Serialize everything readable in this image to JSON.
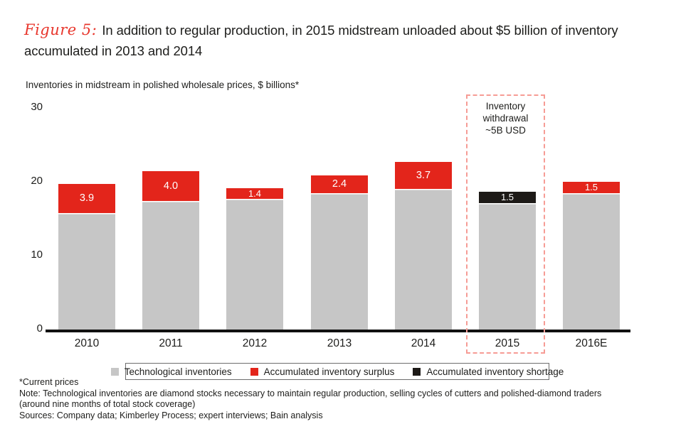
{
  "figure": {
    "label": "Figure 5:",
    "title": "In addition to regular production, in 2015 midstream unloaded about $5 billion of inventory accumulated in 2013 and 2014"
  },
  "axis_label": "Inventories in midstream in polished wholesale prices, $ billions*",
  "annotation": {
    "text": "Inventory\nwithdrawal\n~5B USD"
  },
  "legend": [
    {
      "name": "technological-inventories",
      "label": "Technological inventories",
      "color": "#c6c6c6"
    },
    {
      "name": "accumulated-inventory-surplus",
      "label": "Accumulated inventory surplus",
      "color": "#e3251b"
    },
    {
      "name": "accumulated-inventory-shortage",
      "label": "Accumulated inventory shortage",
      "color": "#1d1a17"
    }
  ],
  "footnotes": [
    "*Current prices",
    "Note: Technological inventories are diamond stocks necessary to maintain regular production, selling cycles of cutters and polished-diamond traders",
    "(around nine months of total stock coverage)",
    "Sources: Company data; Kimberley Process; expert interviews; Bain analysis"
  ],
  "chart_data": {
    "type": "bar",
    "stacked": true,
    "title": "Inventories in midstream in polished wholesale prices, $ billions",
    "categories": [
      "2010",
      "2011",
      "2012",
      "2013",
      "2014",
      "2015",
      "2016E"
    ],
    "series": [
      {
        "name": "Technological inventories",
        "color": "#c6c6c6",
        "values": [
          15.7,
          17.3,
          17.6,
          18.4,
          18.9,
          17.0,
          18.4
        ]
      },
      {
        "name": "Accumulated inventory surplus",
        "color": "#e3251b",
        "values": [
          3.9,
          4.0,
          1.4,
          2.4,
          3.7,
          null,
          1.5
        ]
      },
      {
        "name": "Accumulated inventory shortage",
        "color": "#1d1a17",
        "values": [
          null,
          null,
          null,
          null,
          null,
          1.5,
          null
        ]
      }
    ],
    "totals": [
      19.6,
      21.3,
      19.0,
      20.8,
      22.6,
      18.5,
      19.9
    ],
    "segment_labels": [
      "3.9",
      "4.0",
      "1.4",
      "2.4",
      "3.7",
      "1.5",
      "1.5"
    ],
    "yticks": [
      0,
      10,
      20,
      30
    ],
    "ylim": [
      0,
      30
    ],
    "grid": false,
    "legend_position": "bottom",
    "annotation_category": "2015"
  }
}
